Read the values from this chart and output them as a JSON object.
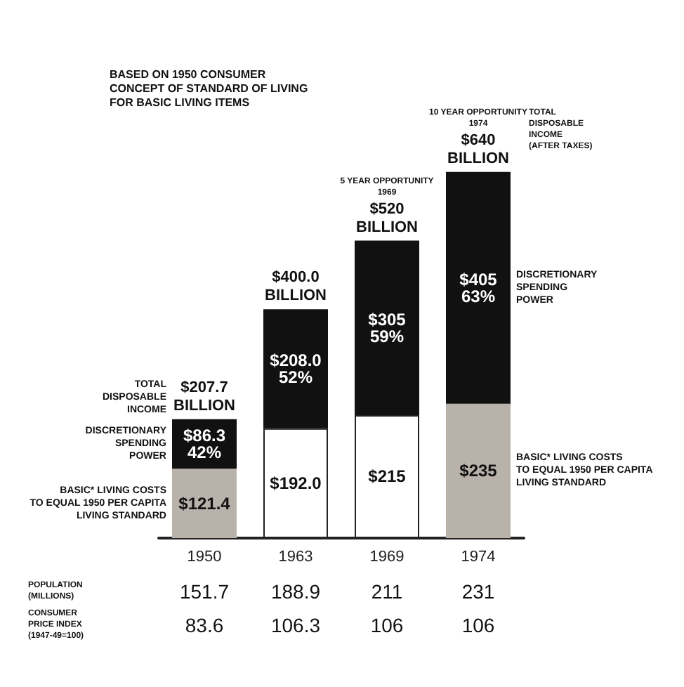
{
  "chart_data": {
    "type": "bar",
    "stacked": true,
    "categories": [
      "1950",
      "1963",
      "1969",
      "1974"
    ],
    "series": [
      {
        "name": "BASIC* LIVING COSTS\nTO EQUAL 1950 PER CAPITA\nLIVING STANDARD",
        "colors": [
          "#b9b2aa",
          "#ffffff",
          "#ffffff",
          "#b9b2aa"
        ],
        "values": [
          121.4,
          192.0,
          215,
          235
        ],
        "value_labels": [
          "$121.4",
          "$192.0",
          "$215",
          "$235"
        ]
      },
      {
        "name": "DISCRETIONARY\nSPENDING\nPOWER",
        "color": "#111111",
        "values": [
          86.3,
          208.0,
          305,
          405
        ],
        "value_labels": [
          "$86.3\n42%",
          "$208.0\n52%",
          "$305\n59%",
          "$405\n63%"
        ]
      }
    ],
    "totals": [
      "$207.7\nBILLION",
      "$400.0\nBILLION",
      "$520\nBILLION",
      "$640\nBILLION"
    ],
    "annotations": [
      "BASED ON 1950 CONSUMER\nCONCEPT OF STANDARD OF LIVING\nFOR BASIC LIVING ITEMS",
      "TOTAL\nDISPOSABLE\nINCOME",
      "TOTAL\nDISPOSABLE\nINCOME\n(AFTER TAXES)",
      "POPULATION\n(MILLIONS)",
      "CONSUMER\nPRICE INDEX\n(1947-49=100)",
      "5 YEAR OPPORTUNITY\n1969",
      "10 YEAR OPPORTUNITY\n1974",
      "151.7",
      "83.6",
      "188.9",
      "106.3",
      "211",
      "106",
      "231",
      "106"
    ]
  }
}
